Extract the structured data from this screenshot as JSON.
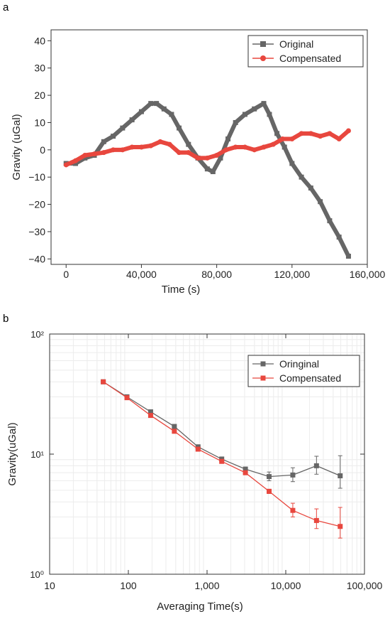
{
  "panels": {
    "a": {
      "label": "a"
    },
    "b": {
      "label": "b"
    }
  },
  "chart_data": [
    {
      "type": "line",
      "panel": "a",
      "xlabel": "Time (s)",
      "ylabel": "Gravity (uGal)",
      "xlim": [
        -8000,
        160000
      ],
      "ylim": [
        -42,
        44
      ],
      "xticks": [
        0,
        40000,
        80000,
        120000,
        160000
      ],
      "xtick_labels": [
        "0",
        "40,000",
        "80,000",
        "120,000",
        "160,000"
      ],
      "yticks": [
        -40,
        -30,
        -20,
        -10,
        0,
        10,
        20,
        30,
        40
      ],
      "ytick_labels": [
        "−40",
        "−30",
        "−20",
        "−10",
        "0",
        "10",
        "20",
        "30",
        "40"
      ],
      "legend_position": "top-right",
      "series": [
        {
          "name": "Original",
          "color": "#666666",
          "marker": "square",
          "x": [
            0,
            5000,
            10000,
            15000,
            20000,
            25000,
            30000,
            35000,
            40000,
            45000,
            48000,
            52000,
            56000,
            60000,
            65000,
            70000,
            75000,
            78000,
            82000,
            86000,
            90000,
            95000,
            100000,
            105000,
            108000,
            112000,
            116000,
            120000,
            125000,
            130000,
            135000,
            140000,
            145000,
            150000
          ],
          "y": [
            -5,
            -5,
            -3,
            -2,
            3,
            5,
            8,
            11,
            14,
            17,
            17,
            15,
            13,
            8,
            2,
            -3,
            -7,
            -8,
            -3,
            4,
            10,
            13,
            15,
            17,
            13,
            6,
            1,
            -5,
            -10,
            -14,
            -19,
            -26,
            -32,
            -39
          ]
        },
        {
          "name": "Compensated",
          "color": "#e8473e",
          "marker": "circle",
          "x": [
            0,
            5000,
            10000,
            15000,
            20000,
            25000,
            30000,
            35000,
            40000,
            45000,
            50000,
            55000,
            60000,
            65000,
            70000,
            75000,
            80000,
            85000,
            90000,
            95000,
            100000,
            105000,
            110000,
            115000,
            120000,
            125000,
            130000,
            135000,
            140000,
            145000,
            150000
          ],
          "y": [
            -5.5,
            -4,
            -2,
            -1.5,
            -1,
            0,
            0,
            1,
            1,
            1.5,
            3,
            2,
            -1,
            -1,
            -3,
            -3,
            -2,
            0,
            1,
            1,
            0,
            1,
            2,
            4,
            4,
            6,
            6,
            5,
            6,
            4,
            7
          ]
        }
      ]
    },
    {
      "type": "line",
      "panel": "b",
      "xlabel": "Averaging Time(s)",
      "ylabel": "Gravity(uGal)",
      "xscale": "log",
      "yscale": "log",
      "xlim": [
        10,
        100000
      ],
      "ylim": [
        1,
        100
      ],
      "xtick_labels": [
        "10",
        "100",
        "1,000",
        "10,000",
        "100,000"
      ],
      "ytick_labels": [
        "10⁰",
        "10¹",
        "10²"
      ],
      "legend_position": "top-right",
      "series": [
        {
          "name": "Oringinal",
          "color": "#666666",
          "marker": "square",
          "x": [
            48,
            96,
            192,
            384,
            768,
            1536,
            3072,
            6144,
            12288,
            24576,
            49152
          ],
          "y": [
            40,
            30,
            22.5,
            17,
            11.5,
            9.1,
            7.5,
            6.5,
            6.7,
            8.0,
            6.6
          ],
          "err_up": [
            0,
            0,
            0,
            0,
            0,
            0,
            0.3,
            0.6,
            1.0,
            1.6,
            3.1
          ],
          "err_down": [
            0,
            0,
            0,
            0,
            0,
            0,
            0.3,
            0.5,
            0.8,
            1.2,
            1.4
          ]
        },
        {
          "name": "Compensated",
          "color": "#e8473e",
          "marker": "square",
          "x": [
            48,
            96,
            192,
            384,
            768,
            1536,
            3072,
            6144,
            12288,
            24576,
            49152
          ],
          "y": [
            40,
            29.5,
            21,
            15.5,
            11,
            8.7,
            7.0,
            4.9,
            3.4,
            2.8,
            2.5
          ],
          "err_up": [
            0,
            0,
            0,
            0,
            0,
            0,
            0.2,
            0.2,
            0.5,
            0.7,
            1.1
          ],
          "err_down": [
            0,
            0,
            0,
            0,
            0,
            0,
            0.2,
            0.2,
            0.4,
            0.4,
            0.5
          ]
        }
      ]
    }
  ]
}
